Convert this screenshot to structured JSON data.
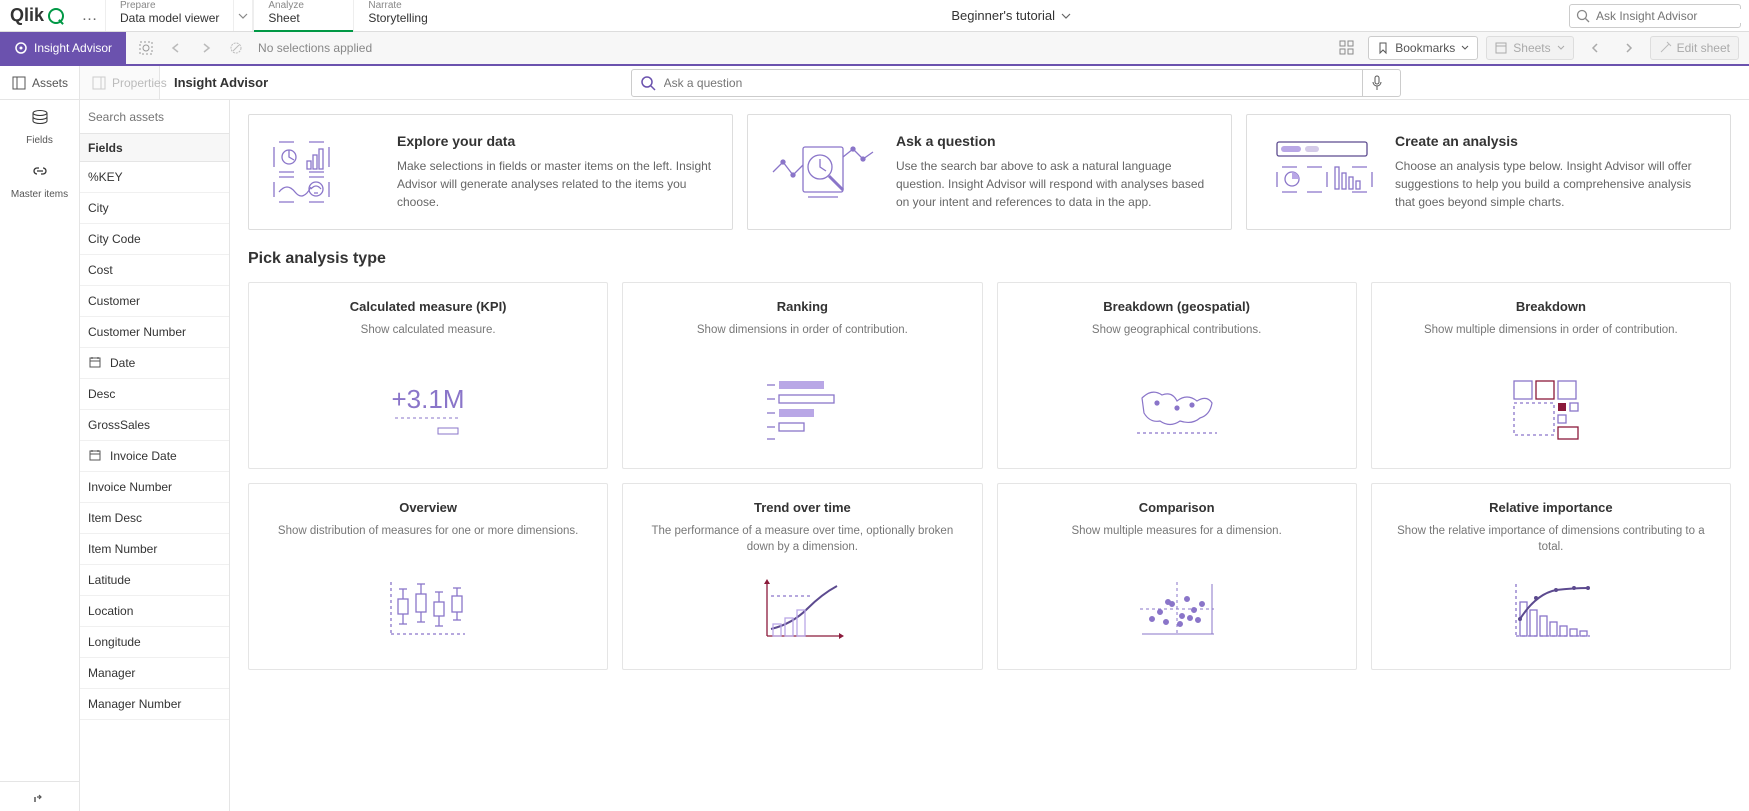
{
  "colors": {
    "brand_green": "#009845",
    "accent_purple": "#6b52ae",
    "text": "#333333",
    "muted": "#888888",
    "border": "#dddddd",
    "illus_stroke": "#8a75c9",
    "illus_fill": "#b9a7e6",
    "illus_dark": "#5c4a8f",
    "maroon": "#8b1a3b"
  },
  "topbar": {
    "logo": "Qlik",
    "more_label": "…",
    "tabs": [
      {
        "sub": "Prepare",
        "main": "Data model viewer",
        "active": false,
        "dropdown": true
      },
      {
        "sub": "Analyze",
        "main": "Sheet",
        "active": true,
        "dropdown": false
      },
      {
        "sub": "Narrate",
        "main": "Storytelling",
        "active": false,
        "dropdown": false
      }
    ],
    "app_title": "Beginner's tutorial",
    "search_placeholder": "Ask Insight Advisor"
  },
  "toolbar": {
    "insight_advisor_label": "Insight Advisor",
    "no_selections": "No selections applied",
    "bookmarks_label": "Bookmarks",
    "sheets_label": "Sheets",
    "edit_label": "Edit sheet"
  },
  "subheader": {
    "assets_label": "Assets",
    "properties_label": "Properties",
    "title": "Insight Advisor",
    "question_placeholder": "Ask a question"
  },
  "rail": {
    "items": [
      {
        "label": "Fields",
        "icon": "db",
        "active": true
      },
      {
        "label": "Master items",
        "icon": "link",
        "active": false
      }
    ]
  },
  "panel": {
    "search_placeholder": "Search assets",
    "header": "Fields",
    "fields": [
      {
        "label": "%KEY",
        "icon": ""
      },
      {
        "label": "City",
        "icon": ""
      },
      {
        "label": "City Code",
        "icon": ""
      },
      {
        "label": "Cost",
        "icon": ""
      },
      {
        "label": "Customer",
        "icon": ""
      },
      {
        "label": "Customer Number",
        "icon": ""
      },
      {
        "label": "Date",
        "icon": "cal"
      },
      {
        "label": "Desc",
        "icon": ""
      },
      {
        "label": "GrossSales",
        "icon": ""
      },
      {
        "label": "Invoice Date",
        "icon": "cal"
      },
      {
        "label": "Invoice Number",
        "icon": ""
      },
      {
        "label": "Item Desc",
        "icon": ""
      },
      {
        "label": "Item Number",
        "icon": ""
      },
      {
        "label": "Latitude",
        "icon": ""
      },
      {
        "label": "Location",
        "icon": ""
      },
      {
        "label": "Longitude",
        "icon": ""
      },
      {
        "label": "Manager",
        "icon": ""
      },
      {
        "label": "Manager Number",
        "icon": ""
      }
    ]
  },
  "intro": [
    {
      "title": "Explore your data",
      "desc": "Make selections in fields or master items on the left. Insight Advisor will generate analyses related to the items you choose."
    },
    {
      "title": "Ask a question",
      "desc": "Use the search bar above to ask a natural language question. Insight Advisor will respond with analyses based on your intent and references to data in the app."
    },
    {
      "title": "Create an analysis",
      "desc": "Choose an analysis type below. Insight Advisor will offer suggestions to help you build a comprehensive analysis that goes beyond simple charts."
    }
  ],
  "section_title": "Pick analysis type",
  "analysis_cards": [
    {
      "title": "Calculated measure (KPI)",
      "desc": "Show calculated measure.",
      "illus": "kpi"
    },
    {
      "title": "Ranking",
      "desc": "Show dimensions in order of contribution.",
      "illus": "ranking"
    },
    {
      "title": "Breakdown (geospatial)",
      "desc": "Show geographical contributions.",
      "illus": "map"
    },
    {
      "title": "Breakdown",
      "desc": "Show multiple dimensions in order of contribution.",
      "illus": "treemap"
    },
    {
      "title": "Overview",
      "desc": "Show distribution of measures for one or more dimensions.",
      "illus": "box"
    },
    {
      "title": "Trend over time",
      "desc": "The performance of a measure over time, optionally broken down by a dimension.",
      "illus": "trend"
    },
    {
      "title": "Comparison",
      "desc": "Show multiple measures for a dimension.",
      "illus": "scatter"
    },
    {
      "title": "Relative importance",
      "desc": "Show the relative importance of dimensions contributing to a total.",
      "illus": "pareto"
    }
  ]
}
